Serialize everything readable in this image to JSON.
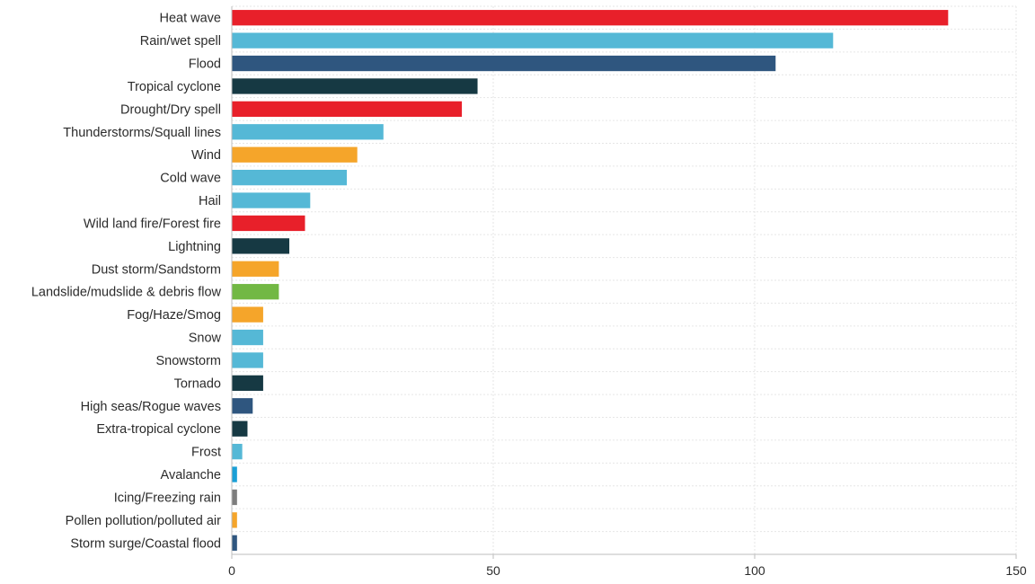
{
  "chart_data": {
    "type": "bar",
    "orientation": "horizontal",
    "categories": [
      "Heat wave",
      "Rain/wet spell",
      "Flood",
      "Tropical cyclone",
      "Drought/Dry spell",
      "Thunderstorms/Squall lines",
      "Wind",
      "Cold wave",
      "Hail",
      "Wild land fire/Forest fire",
      "Lightning",
      "Dust storm/Sandstorm",
      "Landslide/mudslide & debris flow",
      "Fog/Haze/Smog",
      "Snow",
      "Snowstorm",
      "Tornado",
      "High seas/Rogue waves",
      "Extra-tropical cyclone",
      "Frost",
      "Avalanche",
      "Icing/Freezing rain",
      "Pollen pollution/polluted air",
      "Storm surge/Coastal flood"
    ],
    "values": [
      137,
      115,
      104,
      47,
      44,
      29,
      24,
      22,
      15,
      14,
      11,
      9,
      9,
      6,
      6,
      6,
      6,
      4,
      3,
      2,
      1,
      1,
      1,
      1
    ],
    "colors": [
      "#e8202a",
      "#55b8d6",
      "#2f567f",
      "#163943",
      "#e8202a",
      "#55b8d6",
      "#f5a52a",
      "#55b8d6",
      "#55b8d6",
      "#e8202a",
      "#163943",
      "#f5a52a",
      "#72b844",
      "#f5a52a",
      "#55b8d6",
      "#55b8d6",
      "#163943",
      "#2f567f",
      "#163943",
      "#55b8d6",
      "#1a9fd6",
      "#7d7d7d",
      "#f5a52a",
      "#2f567f"
    ],
    "xlim": [
      0,
      150
    ],
    "xticks": [
      0,
      50,
      100,
      150
    ],
    "xtick_labels": [
      "0",
      "50",
      "100",
      "150"
    ],
    "grid": true
  }
}
